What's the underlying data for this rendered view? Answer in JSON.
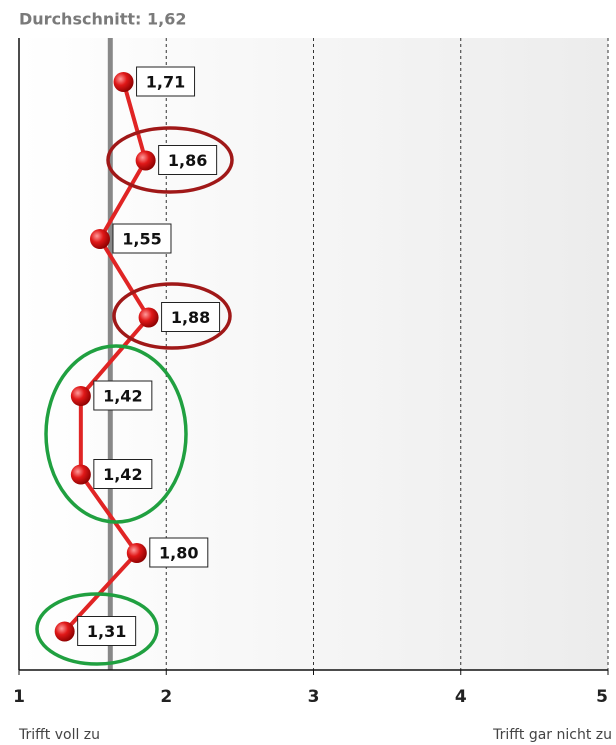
{
  "chart_data": {
    "type": "line",
    "title": "Durchschnitt: 1,62",
    "mean": 1.62,
    "xlim": [
      1,
      5
    ],
    "xticks": [
      1,
      2,
      3,
      4,
      5
    ],
    "x_label_left": "Trifft voll zu",
    "x_label_right": "Trifft gar nicht zu",
    "grid": true,
    "series": [
      {
        "color": "#e02424",
        "values": [
          1.71,
          1.86,
          1.55,
          1.88,
          1.42,
          1.42,
          1.8,
          1.31
        ],
        "value_labels": [
          "1,71",
          "1,86",
          "1,55",
          "1,88",
          "1,42",
          "1,42",
          "1,80",
          "1,31"
        ]
      }
    ]
  }
}
